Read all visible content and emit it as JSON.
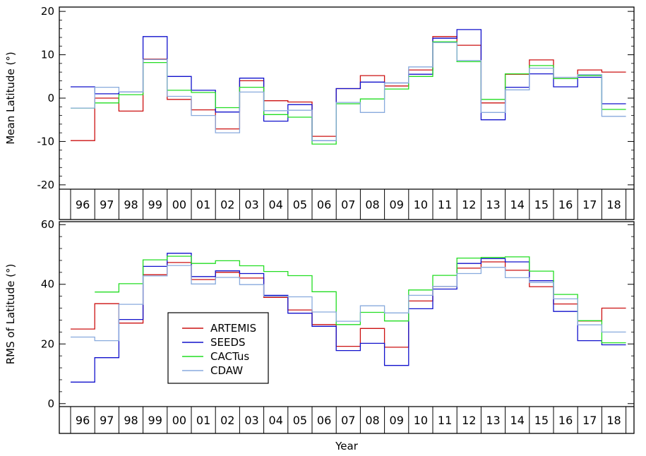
{
  "chart_data": [
    {
      "type": "line",
      "step": true,
      "ylabel": "Mean Latitude (°)",
      "xlabel": "",
      "ylim": [
        -21,
        21
      ],
      "yticks": [
        -20,
        -10,
        0,
        10,
        20
      ],
      "categories": [
        "96",
        "97",
        "98",
        "99",
        "00",
        "01",
        "02",
        "03",
        "04",
        "05",
        "06",
        "07",
        "08",
        "09",
        "10",
        "11",
        "12",
        "13",
        "14",
        "15",
        "16",
        "17",
        "18"
      ],
      "series": [
        {
          "name": "ARTEMIS",
          "values": [
            -9.8,
            0,
            -3,
            9,
            -0.3,
            -2.7,
            -7.1,
            4,
            -0.6,
            -0.9,
            -8.8,
            2.2,
            5.2,
            2.8,
            6.5,
            14.2,
            12.2,
            -1.1,
            5.5,
            8.8,
            4.5,
            6.5,
            6.0
          ]
        },
        {
          "name": "SEEDS",
          "values": [
            2.6,
            1,
            1.4,
            14.2,
            5,
            1.8,
            -3.2,
            4.6,
            -5.3,
            -1.5,
            -9.8,
            2.2,
            3.7,
            3.5,
            5.5,
            13.8,
            15.8,
            -5,
            2.5,
            5.6,
            2.6,
            4.8,
            -1.3
          ]
        },
        {
          "name": "CACTus",
          "values": [
            -2.3,
            -1.1,
            0.8,
            8.2,
            1.8,
            1.3,
            -2.2,
            2.5,
            -3.8,
            -4.4,
            -10.6,
            -1.3,
            -0.2,
            2.1,
            5,
            13,
            8.4,
            -0.3,
            5.6,
            7.5,
            4.5,
            5.2,
            -2.6
          ]
        },
        {
          "name": "CDAW",
          "values": [
            -2.3,
            2.5,
            1.4,
            8.9,
            0.4,
            -4,
            -8,
            1.4,
            -2.9,
            -2.8,
            -9.8,
            -1,
            -3.3,
            3.5,
            7.2,
            12.8,
            8.7,
            -3.3,
            1.9,
            6.9,
            4.8,
            5.4,
            -4.2
          ]
        }
      ]
    },
    {
      "type": "line",
      "step": true,
      "ylabel": "RMS of Latitude (°)",
      "xlabel": "Year",
      "ylim": [
        -1,
        61
      ],
      "yticks": [
        0,
        20,
        40,
        60
      ],
      "categories": [
        "96",
        "97",
        "98",
        "99",
        "00",
        "01",
        "02",
        "03",
        "04",
        "05",
        "06",
        "07",
        "08",
        "09",
        "10",
        "11",
        "12",
        "13",
        "14",
        "15",
        "16",
        "17",
        "18"
      ],
      "legend": {
        "placement": "lower-left",
        "entries": [
          "ARTEMIS",
          "SEEDS",
          "CACTus",
          "CDAW"
        ]
      },
      "series": [
        {
          "name": "ARTEMIS",
          "values": [
            25,
            33.5,
            27,
            43.2,
            47.3,
            41.6,
            44,
            42.1,
            35.6,
            31.4,
            26.5,
            19.2,
            25.2,
            18.9,
            34.4,
            39.3,
            45.4,
            47.5,
            44.7,
            39.2,
            33.4,
            27.7,
            32
          ]
        },
        {
          "name": "SEEDS",
          "values": [
            7.2,
            15.4,
            28.2,
            46,
            50.4,
            42.6,
            44.5,
            43.6,
            36.3,
            30.3,
            25.9,
            17.8,
            20.2,
            12.8,
            31.8,
            38.4,
            47,
            48.6,
            47.5,
            41.2,
            30.9,
            21.1,
            19.7
          ]
        },
        {
          "name": "CACTus",
          "values": [
            null,
            37.4,
            40.2,
            48.2,
            49.4,
            47,
            47.9,
            46.2,
            44.3,
            42.9,
            37.5,
            26.5,
            30.6,
            27.7,
            38.1,
            43,
            48.8,
            49,
            49.2,
            44.4,
            36.6,
            27.8,
            20.4
          ]
        },
        {
          "name": "CDAW",
          "values": [
            22.3,
            21.1,
            33.3,
            42.8,
            46.3,
            40.1,
            42.3,
            39.9,
            36,
            35.8,
            30.7,
            27.6,
            32.8,
            30.4,
            36.3,
            39.3,
            43.6,
            45.7,
            42.2,
            40.6,
            35.1,
            26.4,
            24
          ]
        }
      ]
    }
  ],
  "colors": {
    "ARTEMIS": "#cc1111",
    "SEEDS": "#1111cc",
    "CACTus": "#22dd22",
    "CDAW": "#88aadd"
  }
}
